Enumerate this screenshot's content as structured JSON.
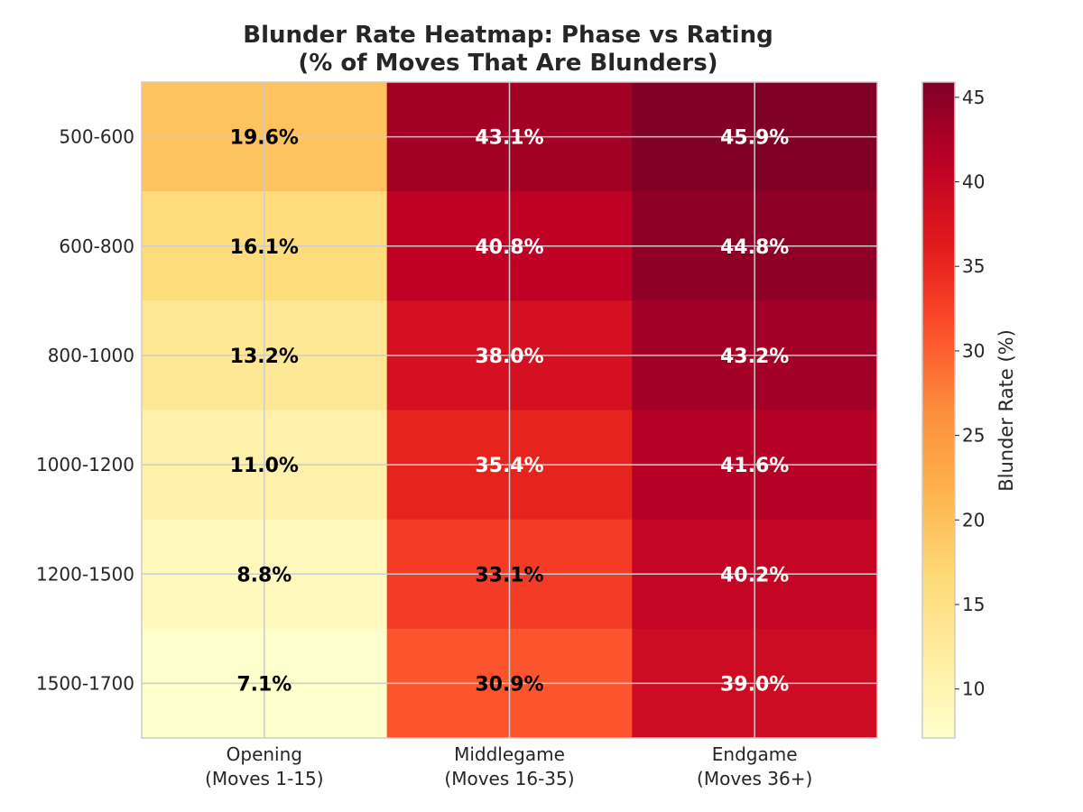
{
  "chart_data": {
    "type": "heatmap",
    "title_line1": "Blunder Rate Heatmap: Phase vs Rating",
    "title_line2": "(% of Moves That Are Blunders)",
    "rows": [
      "500-600",
      "600-800",
      "800-1000",
      "1000-1200",
      "1200-1500",
      "1500-1700"
    ],
    "columns": [
      {
        "line1": "Opening",
        "line2": "(Moves 1-15)"
      },
      {
        "line1": "Middlegame",
        "line2": "(Moves 16-35)"
      },
      {
        "line1": "Endgame",
        "line2": "(Moves 36+)"
      }
    ],
    "values": [
      [
        19.6,
        43.1,
        45.9
      ],
      [
        16.1,
        40.8,
        44.8
      ],
      [
        13.2,
        38.0,
        43.2
      ],
      [
        11.0,
        35.4,
        41.6
      ],
      [
        8.8,
        33.1,
        40.2
      ],
      [
        7.1,
        30.9,
        39.0
      ]
    ],
    "value_suffix": "%",
    "colorbar": {
      "label": "Blunder Rate (%)",
      "min": 7.1,
      "max": 45.9,
      "ticks": [
        10,
        15,
        20,
        25,
        30,
        35,
        40,
        45
      ],
      "colormap": "YlOrRd"
    },
    "grid": true
  }
}
